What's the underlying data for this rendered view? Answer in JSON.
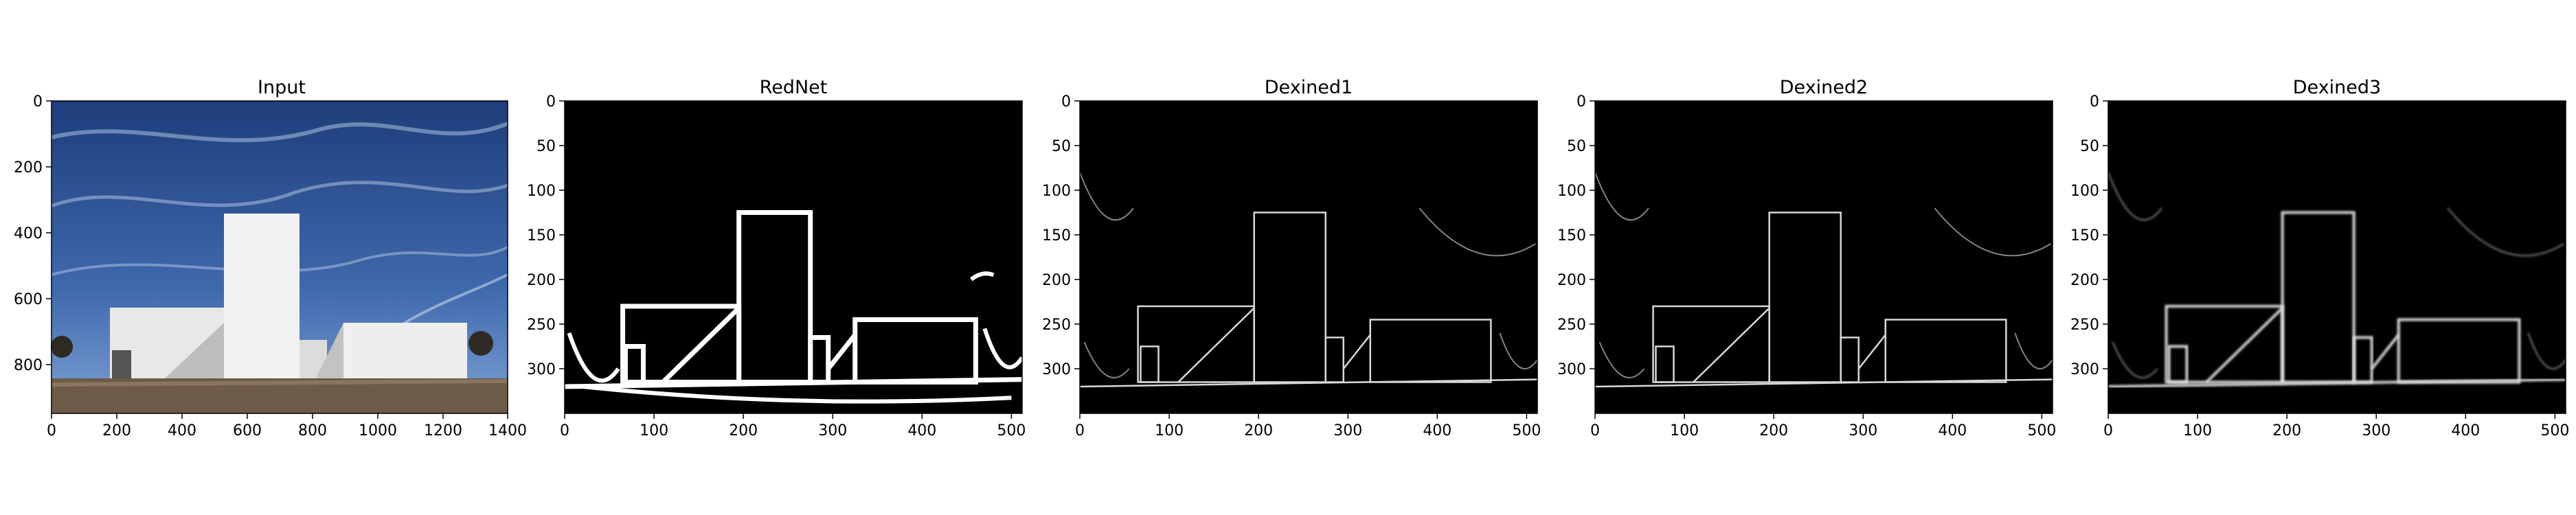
{
  "panels": [
    {
      "title": "Input",
      "kind": "photo",
      "x_ticks": [
        "0",
        "200",
        "400",
        "600",
        "800",
        "1000",
        "1200",
        "1400"
      ],
      "y_ticks": [
        "0",
        "200",
        "400",
        "600",
        "800"
      ]
    },
    {
      "title": "RedNet",
      "kind": "edge-thick",
      "x_ticks": [
        "0",
        "100",
        "200",
        "300",
        "400",
        "500"
      ],
      "y_ticks": [
        "0",
        "50",
        "100",
        "150",
        "200",
        "250",
        "300"
      ]
    },
    {
      "title": "Dexined1",
      "kind": "edge-thin",
      "x_ticks": [
        "0",
        "100",
        "200",
        "300",
        "400",
        "500"
      ],
      "y_ticks": [
        "0",
        "50",
        "100",
        "150",
        "200",
        "250",
        "300"
      ]
    },
    {
      "title": "Dexined2",
      "kind": "edge-thin",
      "x_ticks": [
        "0",
        "100",
        "200",
        "300",
        "400",
        "500"
      ],
      "y_ticks": [
        "0",
        "50",
        "100",
        "150",
        "200",
        "250",
        "300"
      ]
    },
    {
      "title": "Dexined3",
      "kind": "edge-blur",
      "x_ticks": [
        "0",
        "100",
        "200",
        "300",
        "400",
        "500"
      ],
      "y_ticks": [
        "0",
        "50",
        "100",
        "150",
        "200",
        "250",
        "300"
      ]
    }
  ],
  "colors": {
    "sky_top": "#1e3d7a",
    "sky_bottom": "#5a82c0",
    "wall": "#f2f2f2",
    "ground": "#6e5a48",
    "edge_bg": "#000000",
    "edge_line": "#ffffff"
  }
}
